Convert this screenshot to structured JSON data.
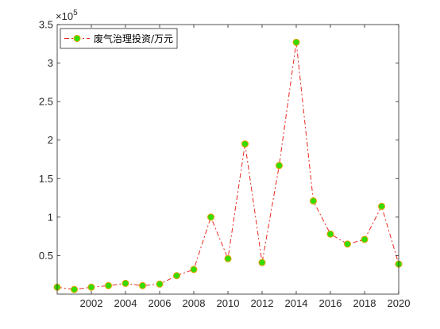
{
  "chart_data": {
    "type": "line",
    "title": "",
    "xlabel": "",
    "ylabel": "",
    "x": [
      2000,
      2001,
      2002,
      2003,
      2004,
      2005,
      2006,
      2007,
      2008,
      2009,
      2010,
      2011,
      2012,
      2013,
      2014,
      2015,
      2016,
      2017,
      2018,
      2019,
      2020
    ],
    "series": [
      {
        "name": "废气治理投资/万元",
        "values": [
          9000,
          6000,
          9000,
          11000,
          14000,
          11000,
          13000,
          24000,
          32000,
          100000,
          46000,
          195000,
          41000,
          167000,
          327000,
          121000,
          78000,
          65000,
          71000,
          114000,
          39000
        ],
        "line_color": "#e8281e",
        "line_style": "dash-dot",
        "marker_fill": "#33dd00",
        "marker_edge": "#e8a000"
      }
    ],
    "xlim": [
      2000,
      2020
    ],
    "ylim": [
      0,
      350000
    ],
    "x_ticks": [
      "2002",
      "2004",
      "2006",
      "2008",
      "2010",
      "2012",
      "2014",
      "2016",
      "2018",
      "2020"
    ],
    "y_ticks": [
      "0.5",
      "1",
      "1.5",
      "2",
      "2.5",
      "3",
      "3.5"
    ],
    "y_exponent_label": "×10",
    "y_exponent_power": "5",
    "grid": false,
    "legend_position": "top-left"
  }
}
